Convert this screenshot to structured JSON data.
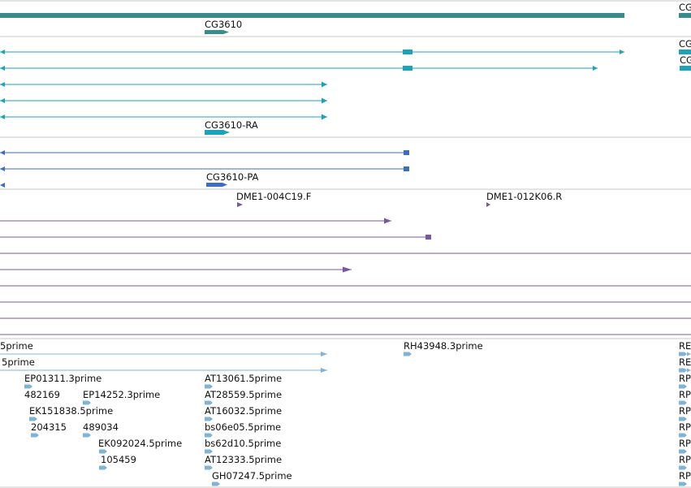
{
  "colors": {
    "gene": "#3a8b8b",
    "transcript": "#1ca3b9",
    "protein": "#3a6cc8",
    "bac": "#7a55a8",
    "est": "#7fb4d6",
    "divider": "#c8c8c8"
  },
  "tracks": [
    {
      "name": "gene-track",
      "labels": [
        {
          "text": "CG3610"
        },
        {
          "text": "CG"
        }
      ]
    },
    {
      "name": "transcript-track",
      "labels": [
        {
          "text": "CG3610-RA"
        },
        {
          "text": "CG"
        },
        {
          "text": "CG"
        }
      ]
    },
    {
      "name": "protein-track",
      "labels": [
        {
          "text": "CG3610-PA"
        }
      ]
    },
    {
      "name": "bac-track",
      "labels": [
        {
          "text": "DME1-004C19.F"
        },
        {
          "text": "DME1-012K06.R"
        }
      ]
    },
    {
      "name": "est-track",
      "labels": [
        {
          "text": "5prime"
        },
        {
          "text": "5prime"
        },
        {
          "text": "RH43948.3prime"
        },
        {
          "text": "EP01311.3prime"
        },
        {
          "text": "482169"
        },
        {
          "text": "EP14252.3prime"
        },
        {
          "text": "EK151838.5prime"
        },
        {
          "text": "204315"
        },
        {
          "text": "489034"
        },
        {
          "text": "EK092024.5prime"
        },
        {
          "text": "105459"
        },
        {
          "text": "AT13061.5prime"
        },
        {
          "text": "AT28559.5prime"
        },
        {
          "text": "AT16032.5prime"
        },
        {
          "text": "bs06e05.5prime"
        },
        {
          "text": "bs62d10.5prime"
        },
        {
          "text": "AT12333.5prime"
        },
        {
          "text": "GH07247.5prime"
        },
        {
          "text": "RE"
        },
        {
          "text": "RE"
        },
        {
          "text": "RP"
        },
        {
          "text": "RP"
        },
        {
          "text": "RP"
        },
        {
          "text": "RP"
        },
        {
          "text": "RP"
        },
        {
          "text": "RP"
        },
        {
          "text": "RP"
        }
      ]
    }
  ]
}
